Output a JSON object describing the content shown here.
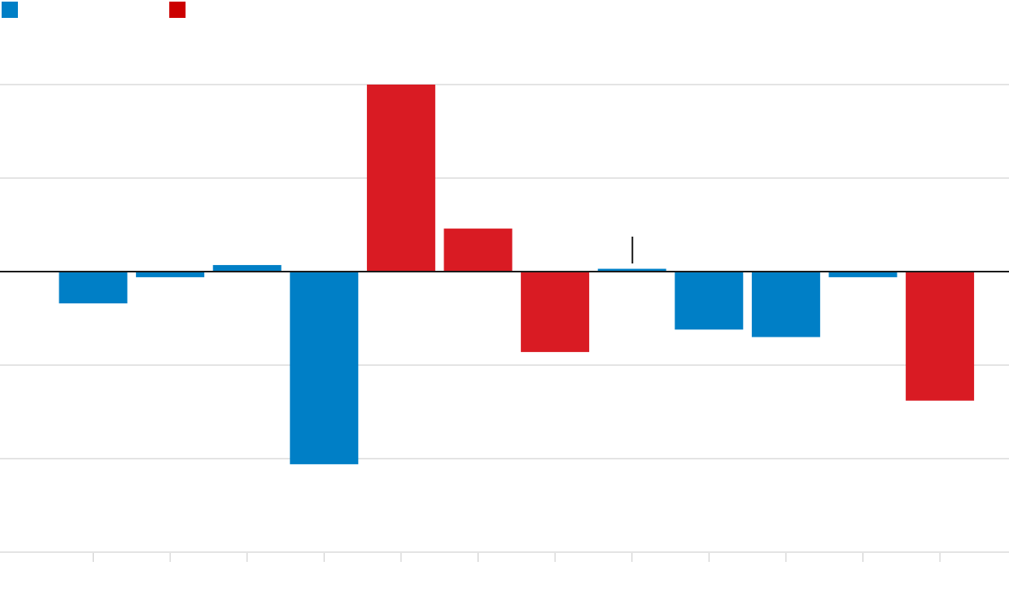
{
  "chart_data": {
    "type": "bar",
    "title": "",
    "xlabel": "",
    "ylabel": "",
    "categories": [
      "",
      "",
      "",
      "",
      "",
      "",
      "",
      "",
      "",
      "",
      "",
      ""
    ],
    "values": [
      -1.7,
      -0.3,
      0.35,
      -10.3,
      10.0,
      2.3,
      -4.3,
      0.15,
      -3.1,
      -3.5,
      -0.3,
      -6.9
    ],
    "bar_colors": [
      "#007fc6",
      "#007fc6",
      "#007fc6",
      "#007fc6",
      "#d91b23",
      "#d91b23",
      "#d91b23",
      "#007fc6",
      "#007fc6",
      "#007fc6",
      "#007fc6",
      "#d91b23"
    ],
    "ylim": [
      -15,
      10
    ],
    "yticks": [
      -15,
      -10,
      -5,
      5,
      10
    ],
    "grid": true,
    "legend": {
      "placement": "top-left",
      "entries": [
        {
          "name": "",
          "color": "#007fc6"
        },
        {
          "name": "",
          "color": "#cc0000"
        }
      ]
    },
    "annotation_marker_index": 7
  }
}
